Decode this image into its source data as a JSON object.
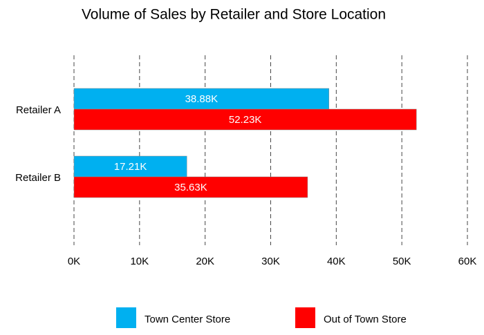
{
  "chart_data": {
    "type": "hbar",
    "title": "Volume of Sales by Retailer and Store Location",
    "categories": [
      "Retailer A",
      "Retailer B"
    ],
    "series": [
      {
        "name": "Town Center Store",
        "color": "#00b0f0",
        "values": [
          38880,
          17210
        ],
        "value_labels": [
          "38.88K",
          "17.21K"
        ]
      },
      {
        "name": "Out of Town Store",
        "color": "#ff0000",
        "values": [
          52230,
          35630
        ],
        "value_labels": [
          "52.23K",
          "35.63K"
        ]
      }
    ],
    "xlim": [
      0,
      60000
    ],
    "xticks": [
      {
        "value": 0,
        "label": "0K"
      },
      {
        "value": 10000,
        "label": "10K"
      },
      {
        "value": 20000,
        "label": "20K"
      },
      {
        "value": 30000,
        "label": "30K"
      },
      {
        "value": 40000,
        "label": "40K"
      },
      {
        "value": 50000,
        "label": "50K"
      },
      {
        "value": 60000,
        "label": "60K"
      }
    ],
    "grid": true
  }
}
